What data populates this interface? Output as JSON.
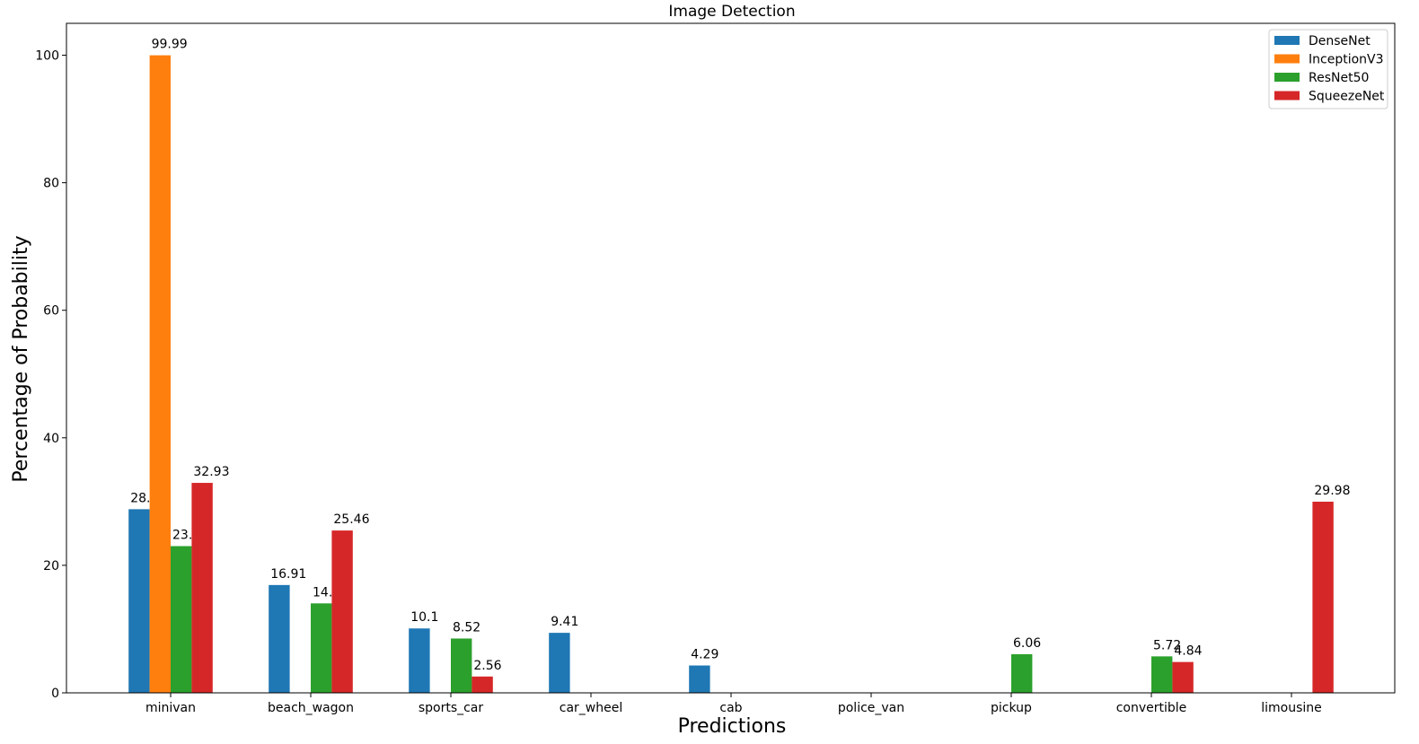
{
  "chart_data": {
    "type": "bar",
    "title": "Image Detection",
    "xlabel": "Predictions",
    "ylabel": "Percentage of Probability",
    "ylim": [
      0,
      105
    ],
    "yticks": [
      0,
      20,
      40,
      60,
      80,
      100
    ],
    "grid": false,
    "legend_position": "top-right",
    "categories": [
      "minivan",
      "beach_wagon",
      "sports_car",
      "car_wheel",
      "cab",
      "police_van",
      "pickup",
      "convertible",
      "limousine"
    ],
    "series": [
      {
        "name": "DenseNet",
        "color": "#1f77b4",
        "values": [
          28.8,
          16.91,
          10.1,
          9.41,
          4.29,
          null,
          null,
          null,
          null
        ]
      },
      {
        "name": "InceptionV3",
        "color": "#ff7f0e",
        "values": [
          99.99,
          null,
          null,
          null,
          null,
          null,
          null,
          null,
          null
        ]
      },
      {
        "name": "ResNet50",
        "color": "#2ca02c",
        "values": [
          23.01,
          14.03,
          8.52,
          null,
          null,
          null,
          6.06,
          5.72,
          null
        ]
      },
      {
        "name": "SqueezeNet",
        "color": "#d62728",
        "values": [
          32.93,
          25.46,
          2.56,
          null,
          null,
          null,
          null,
          4.84,
          29.98
        ]
      }
    ]
  }
}
